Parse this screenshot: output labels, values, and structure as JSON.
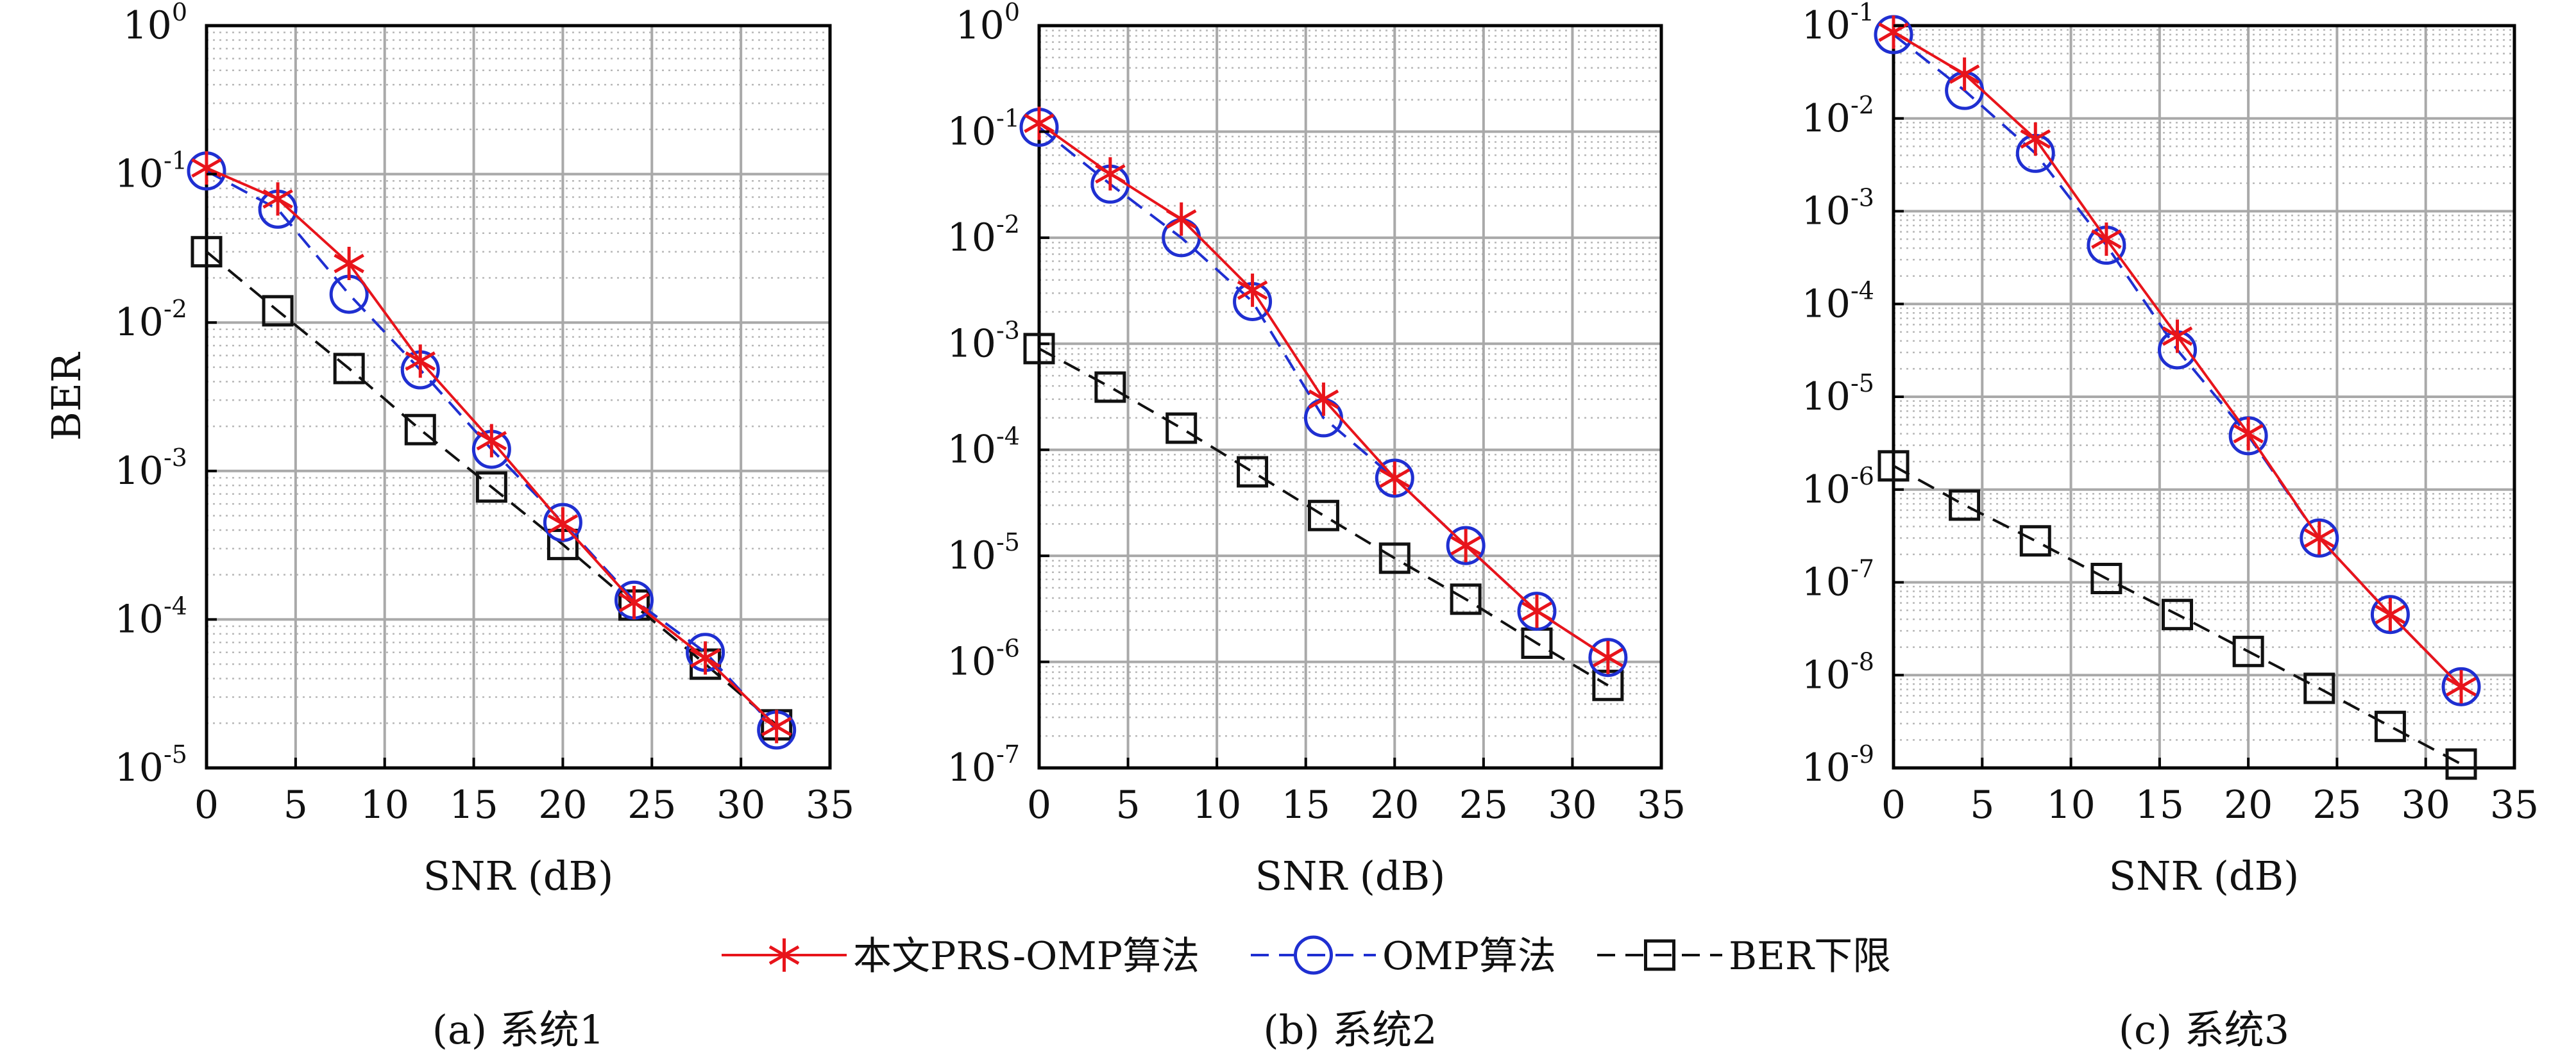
{
  "legend": {
    "items": [
      {
        "label": "本文PRS-OMP算法",
        "color": "#e8141b",
        "marker": "star",
        "dash": "solid"
      },
      {
        "label": "OMP算法",
        "color": "#1f2fd1",
        "marker": "circle",
        "dash": "dashed"
      },
      {
        "label": "BER下限",
        "color": "#111111",
        "marker": "square",
        "dash": "dashed"
      }
    ]
  },
  "chart_data": [
    {
      "type": "line",
      "caption": "(a) 系统1",
      "xlabel": "SNR (dB)",
      "ylabel": "BER",
      "yscale": "log",
      "xlim": [
        0,
        35
      ],
      "ylim": [
        1e-05,
        1
      ],
      "xticks": [
        "0",
        "5",
        "10",
        "15",
        "20",
        "25",
        "30",
        "35"
      ],
      "yticks": [
        {
          "base": "10",
          "exp": "0"
        },
        {
          "base": "10",
          "exp": "-1"
        },
        {
          "base": "10",
          "exp": "-2"
        },
        {
          "base": "10",
          "exp": "-3"
        },
        {
          "base": "10",
          "exp": "-4"
        },
        {
          "base": "10",
          "exp": "-5"
        }
      ],
      "grid": true,
      "x": [
        0,
        4,
        8,
        12,
        16,
        20,
        24,
        28,
        32
      ],
      "series": [
        {
          "name": "本文PRS-OMP算法",
          "values": [
            0.11,
            0.068,
            0.025,
            0.0055,
            0.0016,
            0.00044,
            0.00013,
            5.5e-05,
            1.9e-05
          ]
        },
        {
          "name": "OMP算法",
          "values": [
            0.105,
            0.058,
            0.0155,
            0.0048,
            0.0014,
            0.00045,
            0.000135,
            6e-05,
            1.8e-05
          ]
        },
        {
          "name": "BER下限",
          "values": [
            0.03,
            0.012,
            0.0049,
            0.0019,
            0.00078,
            0.00032,
            0.000125,
            5e-05,
            1.95e-05
          ]
        }
      ]
    },
    {
      "type": "line",
      "caption": "(b) 系统2",
      "xlabel": "SNR (dB)",
      "ylabel": "",
      "yscale": "log",
      "xlim": [
        0,
        35
      ],
      "ylim": [
        1e-07,
        1
      ],
      "xticks": [
        "0",
        "5",
        "10",
        "15",
        "20",
        "25",
        "30",
        "35"
      ],
      "yticks": [
        {
          "base": "10",
          "exp": "0"
        },
        {
          "base": "10",
          "exp": "-1"
        },
        {
          "base": "10",
          "exp": "-2"
        },
        {
          "base": "10",
          "exp": "-3"
        },
        {
          "base": "10",
          "exp": "-4"
        },
        {
          "base": "10",
          "exp": "-5"
        },
        {
          "base": "10",
          "exp": "-6"
        },
        {
          "base": "10",
          "exp": "-7"
        }
      ],
      "grid": true,
      "x": [
        0,
        4,
        8,
        12,
        16,
        20,
        24,
        28,
        32
      ],
      "series": [
        {
          "name": "本文PRS-OMP算法",
          "values": [
            0.12,
            0.04,
            0.015,
            0.0032,
            0.0003,
            5.4e-05,
            1.25e-05,
            3e-06,
            1.1e-06
          ]
        },
        {
          "name": "OMP算法",
          "values": [
            0.11,
            0.032,
            0.01,
            0.0025,
            0.0002,
            5.4e-05,
            1.25e-05,
            3e-06,
            1.1e-06
          ]
        },
        {
          "name": "BER下限",
          "values": [
            0.0009,
            0.00039,
            0.00016,
            6.2e-05,
            2.4e-05,
            9.5e-06,
            3.9e-06,
            1.5e-06,
            6e-07
          ]
        }
      ]
    },
    {
      "type": "line",
      "caption": "(c) 系统3",
      "xlabel": "SNR (dB)",
      "ylabel": "",
      "yscale": "log",
      "xlim": [
        0,
        35
      ],
      "ylim": [
        1e-09,
        0.1
      ],
      "xticks": [
        "0",
        "5",
        "10",
        "15",
        "20",
        "25",
        "30",
        "35"
      ],
      "yticks": [
        {
          "base": "10",
          "exp": "-1"
        },
        {
          "base": "10",
          "exp": "-2"
        },
        {
          "base": "10",
          "exp": "-3"
        },
        {
          "base": "10",
          "exp": "-4"
        },
        {
          "base": "10",
          "exp": "-5"
        },
        {
          "base": "10",
          "exp": "-6"
        },
        {
          "base": "10",
          "exp": "-7"
        },
        {
          "base": "10",
          "exp": "-8"
        },
        {
          "base": "10",
          "exp": "-9"
        }
      ],
      "grid": true,
      "x": [
        0,
        4,
        8,
        12,
        16,
        20,
        24,
        28,
        32
      ],
      "series": [
        {
          "name": "本文PRS-OMP算法",
          "values": [
            0.085,
            0.03,
            0.006,
            0.0005,
            4.5e-05,
            4e-06,
            3e-07,
            4.5e-08,
            7.5e-09
          ]
        },
        {
          "name": "OMP算法",
          "values": [
            0.08,
            0.02,
            0.0042,
            0.00043,
            3.2e-05,
            3.8e-06,
            3e-07,
            4.5e-08,
            7.5e-09
          ]
        },
        {
          "name": "BER下限",
          "values": [
            1.8e-06,
            6.8e-07,
            2.8e-07,
            1.1e-07,
            4.5e-08,
            1.8e-08,
            7.2e-09,
            2.8e-09,
            1.1e-09
          ]
        }
      ]
    }
  ]
}
